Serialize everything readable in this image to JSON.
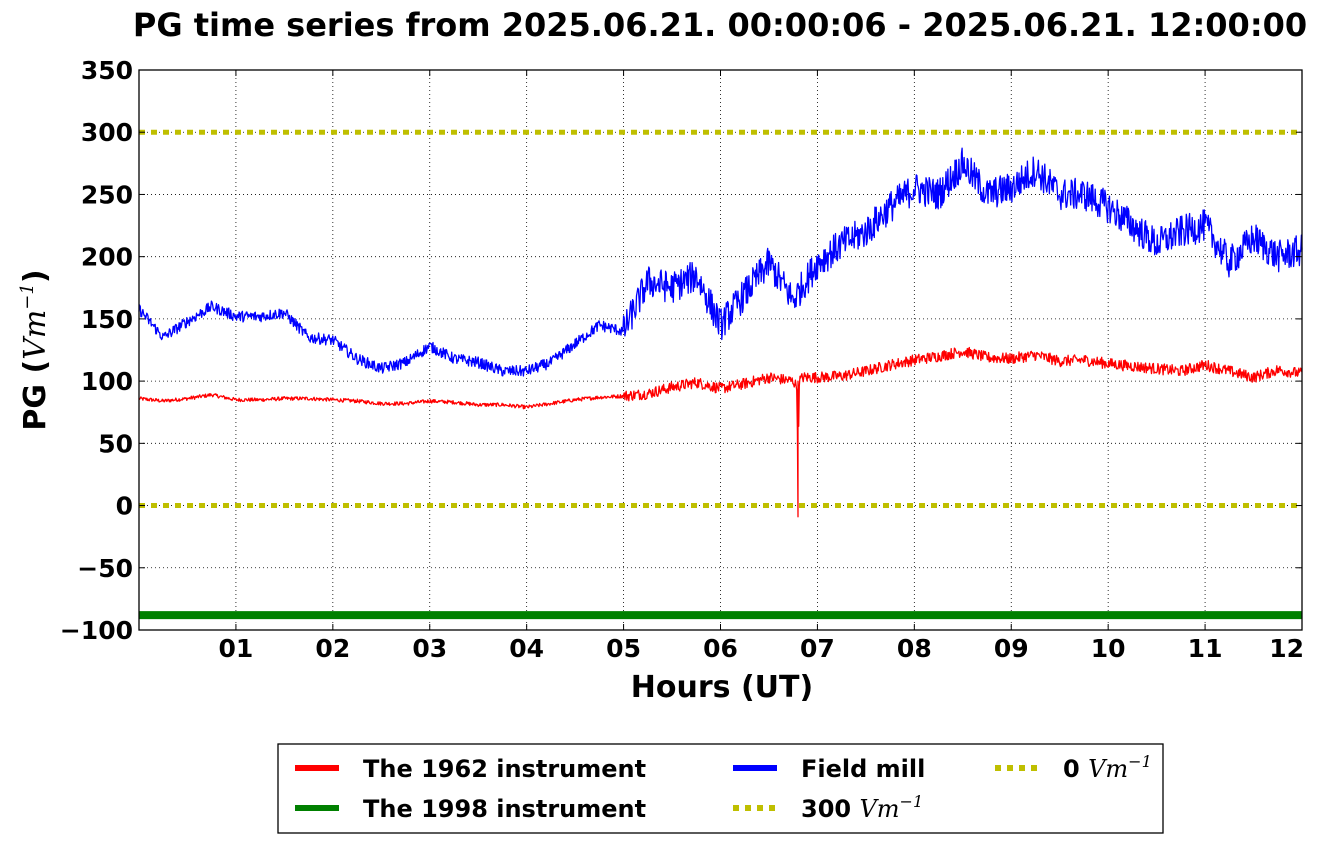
{
  "chart_data": {
    "type": "line",
    "title": "PG time series from 2025.06.21. 00:00:06 - 2025.06.21. 12:00:00",
    "xlabel": "Hours (UT)",
    "ylabel_main": "PG (",
    "ylabel_unit": "Vm",
    "ylabel_exp": "−1",
    "ylabel_close": ")",
    "xlim": [
      0,
      12
    ],
    "ylim": [
      -100,
      350
    ],
    "x_ticks": [
      1,
      2,
      3,
      4,
      5,
      6,
      7,
      8,
      9,
      10,
      11,
      12
    ],
    "x_tick_labels": [
      "01",
      "02",
      "03",
      "04",
      "05",
      "06",
      "07",
      "08",
      "09",
      "10",
      "11",
      "12"
    ],
    "y_ticks": [
      -100,
      -50,
      0,
      50,
      100,
      150,
      200,
      250,
      300,
      350
    ],
    "y_tick_labels": [
      "−100",
      "−50",
      "0",
      "50",
      "100",
      "150",
      "200",
      "250",
      "300",
      "350"
    ],
    "grid": true,
    "legend_position": "below plot, center",
    "series": [
      {
        "name": "The 1962 instrument",
        "color": "#ff0000",
        "style": "solid",
        "x": [
          0,
          0.25,
          0.5,
          0.75,
          1,
          1.25,
          1.5,
          1.75,
          2,
          2.25,
          2.5,
          2.75,
          3,
          3.25,
          3.5,
          3.75,
          4,
          4.25,
          4.5,
          4.75,
          5,
          5.25,
          5.5,
          5.75,
          6,
          6.25,
          6.5,
          6.75,
          6.79,
          6.8,
          6.81,
          6.85,
          7,
          7.25,
          7.5,
          7.75,
          8,
          8.25,
          8.5,
          8.75,
          9,
          9.25,
          9.5,
          9.75,
          10,
          10.25,
          10.5,
          10.75,
          11,
          11.25,
          11.5,
          11.75,
          12
        ],
        "y": [
          86,
          84,
          86,
          89,
          85,
          85,
          86,
          86,
          85,
          84,
          82,
          82,
          84,
          83,
          81,
          81,
          79,
          82,
          85,
          87,
          88,
          90,
          95,
          99,
          94,
          98,
          103,
          100,
          95,
          -9,
          100,
          103,
          103,
          104,
          108,
          113,
          117,
          120,
          124,
          119,
          118,
          121,
          116,
          117,
          114,
          112,
          110,
          108,
          113,
          108,
          103,
          109,
          106
        ]
      },
      {
        "name": "The 1998 instrument",
        "color": "#008000",
        "style": "solid",
        "x": [
          0,
          12
        ],
        "y": [
          -88,
          -88
        ]
      },
      {
        "name": "Field mill",
        "color": "#0000ff",
        "style": "solid",
        "x": [
          0,
          0.25,
          0.5,
          0.75,
          1,
          1.25,
          1.5,
          1.75,
          2,
          2.25,
          2.5,
          2.75,
          3,
          3.25,
          3.5,
          3.75,
          4,
          4.25,
          4.5,
          4.75,
          5,
          5.25,
          5.5,
          5.75,
          6,
          6.25,
          6.5,
          6.75,
          7,
          7.25,
          7.5,
          7.75,
          8,
          8.25,
          8.5,
          8.75,
          9,
          9.25,
          9.5,
          9.75,
          10,
          10.25,
          10.5,
          10.75,
          11,
          11.25,
          11.5,
          11.75,
          12
        ],
        "y": [
          158,
          135,
          148,
          160,
          152,
          152,
          155,
          135,
          133,
          118,
          110,
          115,
          128,
          118,
          115,
          108,
          108,
          115,
          130,
          145,
          140,
          180,
          175,
          185,
          145,
          170,
          195,
          165,
          195,
          210,
          220,
          240,
          255,
          250,
          275,
          250,
          255,
          270,
          250,
          250,
          240,
          225,
          210,
          220,
          225,
          195,
          215,
          200,
          205
        ]
      },
      {
        "name": "300 Vm⁻¹",
        "color": "#bfbf00",
        "style": "dotted",
        "x": [
          0,
          12
        ],
        "y": [
          300,
          300
        ]
      },
      {
        "name": "0 Vm⁻¹",
        "color": "#bfbf00",
        "style": "dotted",
        "x": [
          0,
          12
        ],
        "y": [
          0,
          0
        ]
      }
    ],
    "legend": [
      {
        "prefix": "The 1962 instrument",
        "math": "",
        "exp": "",
        "color": "#ff0000",
        "style": "solid"
      },
      {
        "prefix": "Field mill",
        "math": "",
        "exp": "",
        "color": "#0000ff",
        "style": "solid"
      },
      {
        "prefix": "0 ",
        "math": "Vm",
        "exp": "−1",
        "color": "#bfbf00",
        "style": "dotted"
      },
      {
        "prefix": "The 1998 instrument",
        "math": "",
        "exp": "",
        "color": "#008000",
        "style": "solid"
      },
      {
        "prefix": "300 ",
        "math": "Vm",
        "exp": "−1",
        "color": "#bfbf00",
        "style": "dotted"
      }
    ]
  }
}
